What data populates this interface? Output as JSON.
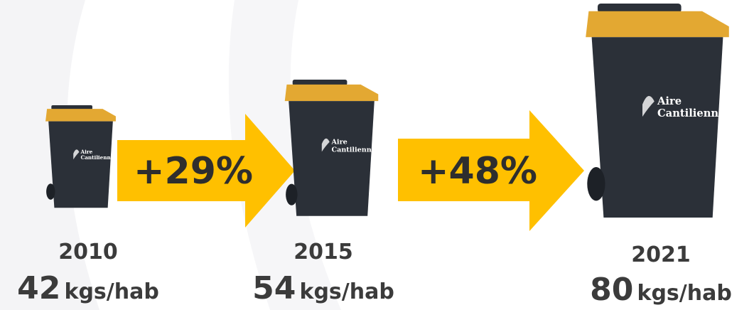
{
  "items": [
    {
      "year": "2010",
      "value": "42",
      "unit": "kgs/hab"
    },
    {
      "year": "2015",
      "value": "54",
      "unit": "kgs/hab"
    },
    {
      "year": "2021",
      "value": "80",
      "unit": "kgs/hab"
    }
  ],
  "arrows": [
    {
      "label": "+29%"
    },
    {
      "label": "+48%"
    }
  ],
  "logo": [
    "Aire",
    "Cantilienne"
  ]
}
